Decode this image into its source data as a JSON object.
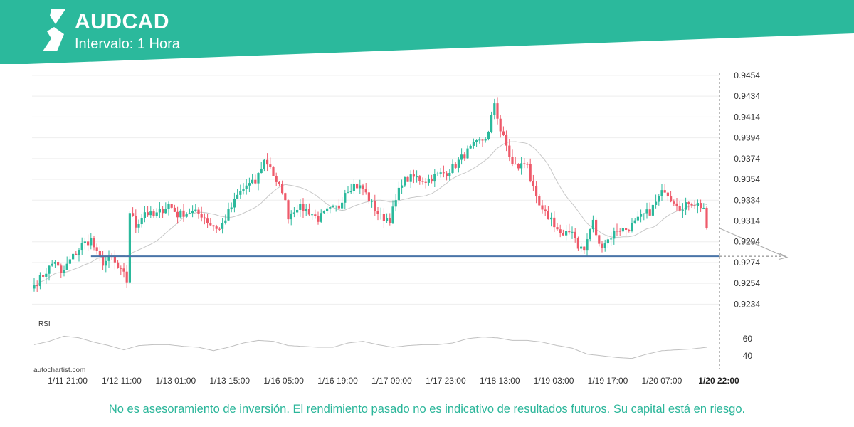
{
  "header": {
    "title": "AUDCAD",
    "subtitle": "Intervalo: 1 Hora",
    "bg_color": "#2bb99c",
    "logo_icon": "autochartist-logo-icon"
  },
  "footer": {
    "disclaimer": "No es asesoramiento de inversión. El rendimiento pasado no es indicativo de resultados futuros. Su capital está en riesgo.",
    "brand": "autochartist.com"
  },
  "chart_data": {
    "type": "candlestick",
    "symbol": "AUDCAD",
    "interval": "1 Hora",
    "ylim": [
      0.9224,
      0.9456
    ],
    "y_ticks": [
      "0.9454",
      "0.9434",
      "0.9414",
      "0.9394",
      "0.9374",
      "0.9354",
      "0.9334",
      "0.9314",
      "0.9294",
      "0.9274",
      "0.9254",
      "0.9234"
    ],
    "x_ticks": [
      "1/11 21:00",
      "1/12 11:00",
      "1/13 01:00",
      "1/13 15:00",
      "1/16 05:00",
      "1/16 19:00",
      "1/17 09:00",
      "1/17 23:00",
      "1/18 13:00",
      "1/19 03:00",
      "1/19 17:00",
      "1/20 07:00"
    ],
    "last_time_label": "1/20 22:00",
    "support_level": 0.928,
    "projection": {
      "from": 0.9307,
      "to": 0.9279
    },
    "colors": {
      "up": "#2bb99c",
      "down": "#ee5a6a",
      "support": "#4a74a8",
      "ma": "#c8c8c8",
      "rsi": "#c0c0c0",
      "grid": "#eeeeee"
    },
    "candle_keypoints": [
      [
        0,
        0.9252
      ],
      [
        3,
        0.9262
      ],
      [
        7,
        0.9276
      ],
      [
        9,
        0.9262
      ],
      [
        12,
        0.9276
      ],
      [
        16,
        0.9291
      ],
      [
        19,
        0.9296
      ],
      [
        21,
        0.9282
      ],
      [
        23,
        0.9274
      ],
      [
        26,
        0.9278
      ],
      [
        28,
        0.9268
      ],
      [
        30,
        0.9262
      ],
      [
        31,
        0.9256
      ],
      [
        32,
        0.9323
      ],
      [
        34,
        0.9309
      ],
      [
        37,
        0.9323
      ],
      [
        40,
        0.9318
      ],
      [
        45,
        0.933
      ],
      [
        48,
        0.932
      ],
      [
        52,
        0.9323
      ],
      [
        56,
        0.932
      ],
      [
        59,
        0.9311
      ],
      [
        62,
        0.9306
      ],
      [
        65,
        0.9322
      ],
      [
        68,
        0.9338
      ],
      [
        71,
        0.9348
      ],
      [
        74,
        0.9351
      ],
      [
        76,
        0.9366
      ],
      [
        77,
        0.9372
      ],
      [
        79,
        0.9367
      ],
      [
        81,
        0.9349
      ],
      [
        83,
        0.9344
      ],
      [
        85,
        0.9319
      ],
      [
        88,
        0.9328
      ],
      [
        92,
        0.9323
      ],
      [
        95,
        0.9316
      ],
      [
        98,
        0.9323
      ],
      [
        102,
        0.9328
      ],
      [
        104,
        0.9343
      ],
      [
        107,
        0.9349
      ],
      [
        110,
        0.9345
      ],
      [
        113,
        0.933
      ],
      [
        116,
        0.9318
      ],
      [
        119,
        0.9316
      ],
      [
        121,
        0.9333
      ],
      [
        123,
        0.9352
      ],
      [
        127,
        0.9356
      ],
      [
        131,
        0.9353
      ],
      [
        135,
        0.9358
      ],
      [
        138,
        0.9361
      ],
      [
        141,
        0.9368
      ],
      [
        144,
        0.9378
      ],
      [
        147,
        0.9386
      ],
      [
        150,
        0.9392
      ],
      [
        152,
        0.9398
      ],
      [
        154,
        0.9428
      ],
      [
        156,
        0.9401
      ],
      [
        158,
        0.9386
      ],
      [
        160,
        0.9368
      ],
      [
        162,
        0.9366
      ],
      [
        165,
        0.9371
      ],
      [
        166,
        0.9354
      ],
      [
        168,
        0.9334
      ],
      [
        170,
        0.9322
      ],
      [
        173,
        0.9316
      ],
      [
        175,
        0.9306
      ],
      [
        177,
        0.9298
      ],
      [
        180,
        0.9306
      ],
      [
        182,
        0.929
      ],
      [
        184,
        0.9286
      ],
      [
        186,
        0.9306
      ],
      [
        187,
        0.9313
      ],
      [
        189,
        0.929
      ],
      [
        192,
        0.9296
      ],
      [
        195,
        0.9306
      ],
      [
        198,
        0.9306
      ],
      [
        201,
        0.9312
      ],
      [
        204,
        0.932
      ],
      [
        206,
        0.9323
      ],
      [
        209,
        0.9336
      ],
      [
        211,
        0.9345
      ],
      [
        213,
        0.9336
      ],
      [
        215,
        0.9332
      ],
      [
        217,
        0.9324
      ],
      [
        219,
        0.9333
      ],
      [
        222,
        0.933
      ],
      [
        224,
        0.9327
      ],
      [
        225,
        0.9307
      ]
    ],
    "rsi": {
      "label": "RSI",
      "y_ticks": [
        "60",
        "40"
      ],
      "ylim": [
        30,
        75
      ],
      "keypoints": [
        [
          0,
          53
        ],
        [
          5,
          57
        ],
        [
          10,
          63
        ],
        [
          15,
          61
        ],
        [
          20,
          56
        ],
        [
          25,
          52
        ],
        [
          30,
          47
        ],
        [
          35,
          52
        ],
        [
          40,
          53
        ],
        [
          45,
          53
        ],
        [
          50,
          51
        ],
        [
          55,
          50
        ],
        [
          60,
          46
        ],
        [
          65,
          50
        ],
        [
          70,
          55
        ],
        [
          75,
          58
        ],
        [
          80,
          57
        ],
        [
          85,
          52
        ],
        [
          90,
          51
        ],
        [
          95,
          50
        ],
        [
          100,
          50
        ],
        [
          105,
          55
        ],
        [
          110,
          57
        ],
        [
          115,
          53
        ],
        [
          120,
          50
        ],
        [
          125,
          52
        ],
        [
          130,
          53
        ],
        [
          135,
          53
        ],
        [
          140,
          55
        ],
        [
          145,
          60
        ],
        [
          150,
          62
        ],
        [
          155,
          61
        ],
        [
          160,
          58
        ],
        [
          165,
          58
        ],
        [
          170,
          56
        ],
        [
          175,
          52
        ],
        [
          180,
          49
        ],
        [
          185,
          42
        ],
        [
          190,
          40
        ],
        [
          195,
          38
        ],
        [
          200,
          37
        ],
        [
          205,
          42
        ],
        [
          210,
          46
        ],
        [
          215,
          47
        ],
        [
          220,
          48
        ],
        [
          225,
          50
        ]
      ]
    }
  }
}
